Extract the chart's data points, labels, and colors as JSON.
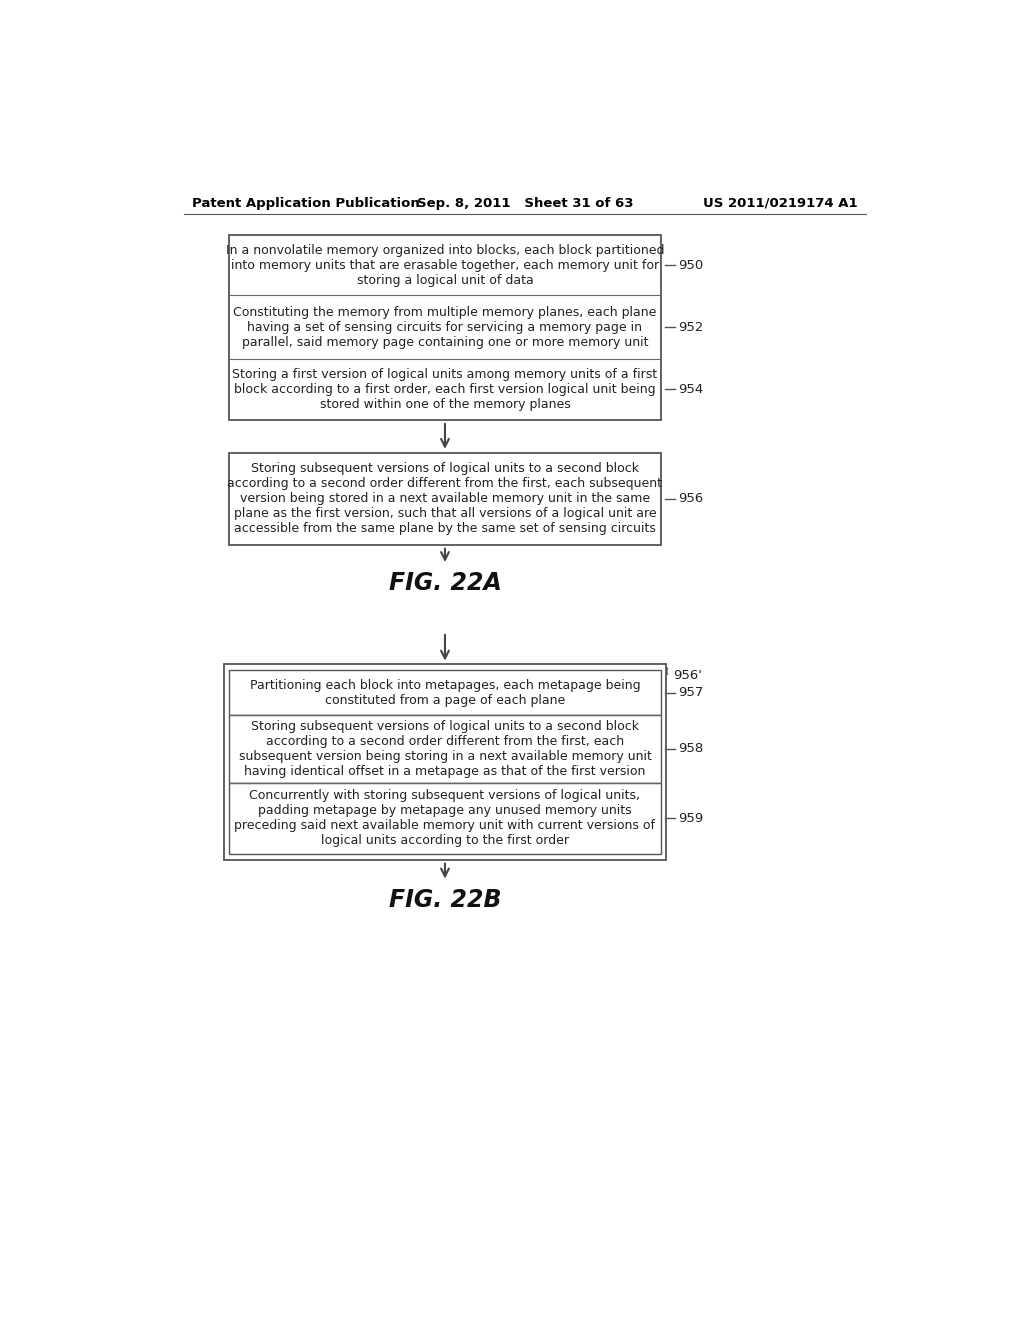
{
  "header_left": "Patent Application Publication",
  "header_mid": "Sep. 8, 2011   Sheet 31 of 63",
  "header_right": "US 2011/0219174 A1",
  "bg_color": "#ffffff",
  "box_edge_color": "#555555",
  "text_color": "#222222",
  "arrow_color": "#444444",
  "fig22a_label": "FIG. 22A",
  "fig22b_label": "FIG. 22B",
  "boxes_top": [
    {
      "text": "In a nonvolatile memory organized into blocks, each block partitioned\ninto memory units that are erasable together, each memory unit for\nstoring a logical unit of data",
      "label": "950"
    },
    {
      "text": "Constituting the memory from multiple memory planes, each plane\nhaving a set of sensing circuits for servicing a memory page in\nparallel, said memory page containing one or more memory unit",
      "label": "952"
    },
    {
      "text": "Storing a first version of logical units among memory units of a first\nblock according to a first order, each first version logical unit being\nstored within one of the memory planes",
      "label": "954"
    }
  ],
  "box_956": {
    "text": "Storing subsequent versions of logical units to a second block\naccording to a second order different from the first, each subsequent\nversion being stored in a next available memory unit in the same\nplane as the first version, such that all versions of a logical unit are\naccessible from the same plane by the same set of sensing circuits",
    "label": "956"
  },
  "box_956p": {
    "label": "956'",
    "inner_boxes": [
      {
        "text": "Partitioning each block into metapages, each metapage being\nconstituted from a page of each plane",
        "label": "957"
      },
      {
        "text": "Storing subsequent versions of logical units to a second block\naccording to a second order different from the first, each\nsubsequent version being storing in a next available memory unit\nhaving identical offset in a metapage as that of the first version",
        "label": "958"
      },
      {
        "text": "Concurrently with storing subsequent versions of logical units,\npadding metapage by metapage any unused memory units\npreceding said next available memory unit with current versions of\nlogical units according to the first order",
        "label": "959"
      }
    ]
  }
}
